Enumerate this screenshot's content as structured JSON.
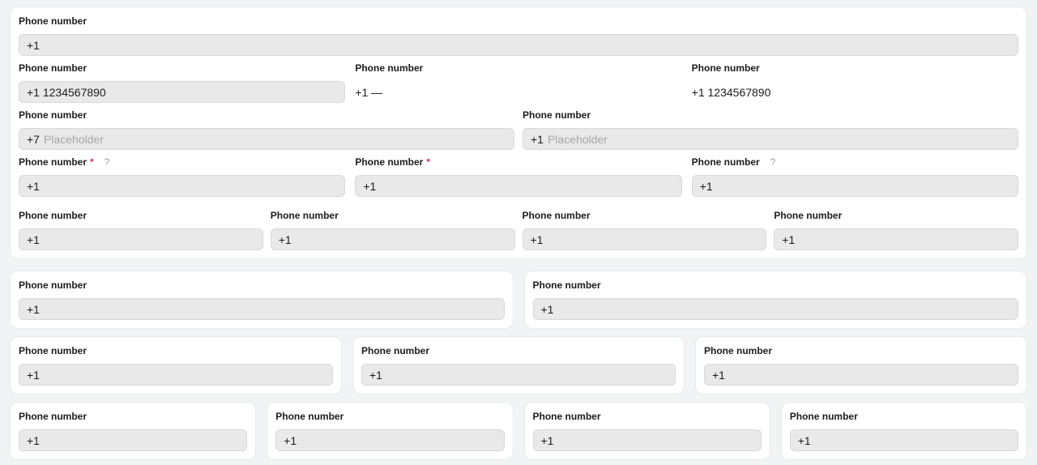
{
  "colors": {
    "page_bg": "#f2f3f5",
    "card_bg": "#ffffff",
    "card_border": "#e7e9ec",
    "input_bg": "#e9e9e9",
    "input_border": "#d8d8d8",
    "label_text": "#1c1c1c",
    "placeholder_text": "#a5a5a5",
    "required_asterisk": "#ed2e5e",
    "help_icon": "#9aa0a6"
  },
  "main_card": {
    "rows": [
      {
        "fields": [
          {
            "label": "Phone number",
            "value": "+1"
          }
        ]
      },
      {
        "fields": [
          {
            "label": "Phone number",
            "value": "+1 1234567890"
          },
          {
            "label": "Phone number",
            "value": "+1 —"
          },
          {
            "label": "Phone number",
            "value": "+1 1234567890"
          }
        ]
      },
      {
        "fields": [
          {
            "label": "Phone number",
            "prefix": "+7",
            "placeholder": "Placeholder"
          },
          {
            "label": "Phone number",
            "prefix": "+1",
            "placeholder": "Placeholder"
          }
        ]
      },
      {
        "fields": [
          {
            "label": "Phone number",
            "required": "*",
            "help": "?",
            "value": "+1"
          },
          {
            "label": "Phone number",
            "required": "*",
            "value": "+1"
          },
          {
            "label": "Phone number",
            "help": "?",
            "value": "+1"
          }
        ]
      },
      {
        "fields": [
          {
            "label": "Phone number",
            "value": "+1"
          },
          {
            "label": "Phone number",
            "value": "+1"
          },
          {
            "label": "Phone number",
            "value": "+1"
          },
          {
            "label": "Phone number",
            "value": "+1"
          }
        ]
      }
    ]
  },
  "sections": [
    {
      "cards": [
        {
          "label": "Phone number",
          "value": "+1"
        },
        {
          "label": "Phone number",
          "value": "+1"
        }
      ]
    },
    {
      "cards": [
        {
          "label": "Phone number",
          "value": "+1"
        },
        {
          "label": "Phone number",
          "value": "+1"
        },
        {
          "label": "Phone number",
          "value": "+1"
        }
      ]
    },
    {
      "cards": [
        {
          "label": "Phone number",
          "value": "+1"
        },
        {
          "label": "Phone number",
          "value": "+1"
        },
        {
          "label": "Phone number",
          "value": "+1"
        },
        {
          "label": "Phone number",
          "value": "+1"
        }
      ]
    }
  ]
}
